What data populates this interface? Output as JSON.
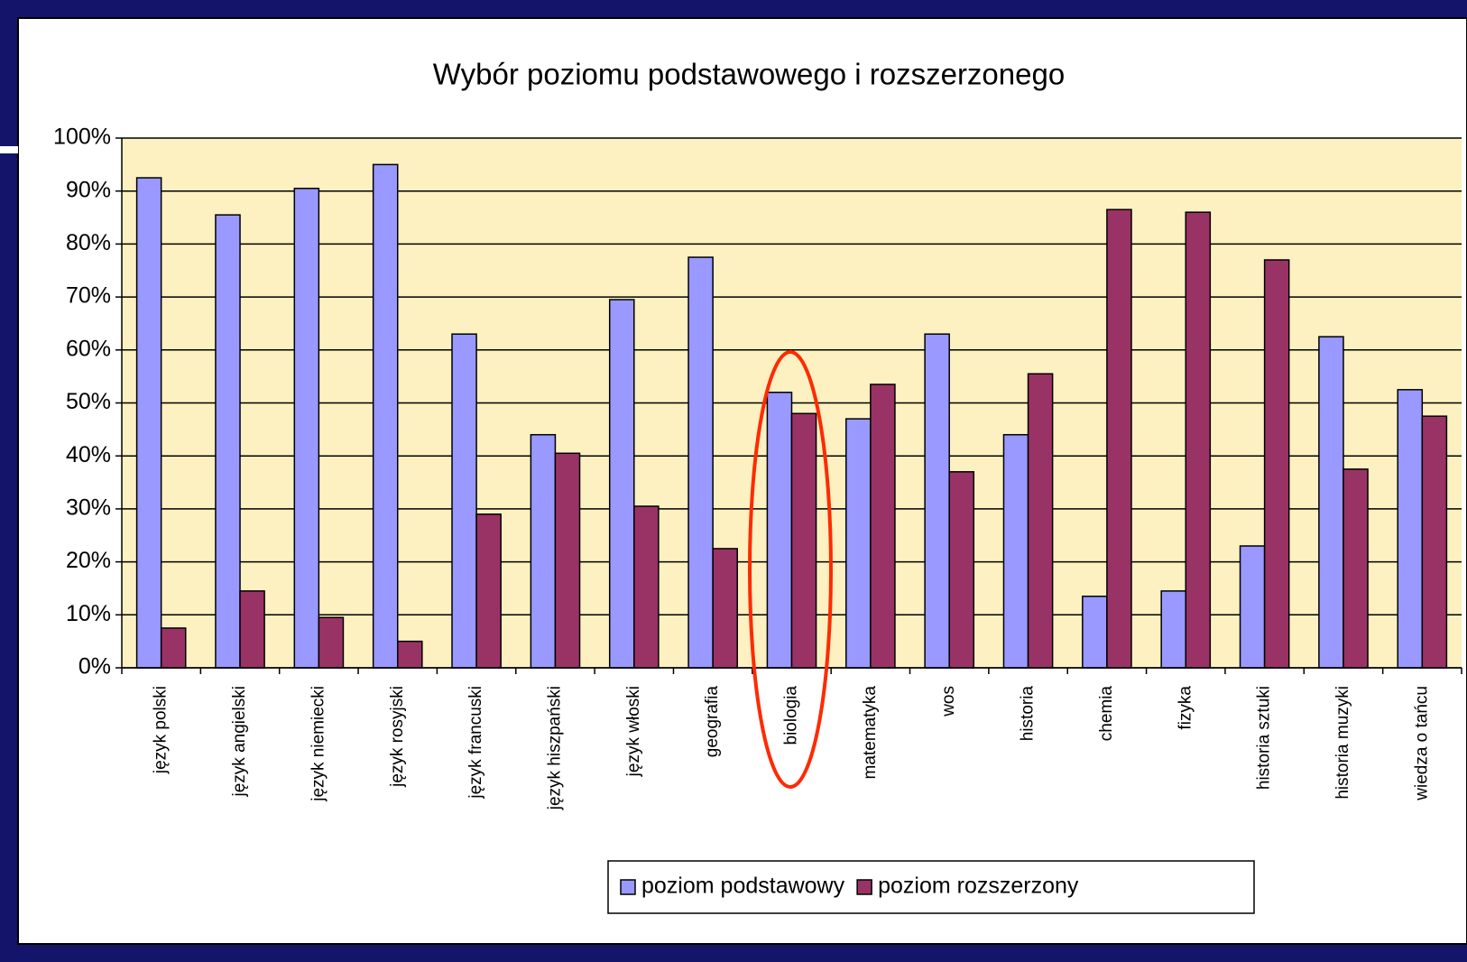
{
  "chart_data": {
    "type": "bar",
    "title": "Wybór poziomu podstawowego i rozszerzonego",
    "categories": [
      "język polski",
      "język angielski",
      "język niemiecki",
      "język rosyjski",
      "język francuski",
      "język hiszpański",
      "język włoski",
      "geografia",
      "biologia",
      "matematyka",
      "wos",
      "historia",
      "chemia",
      "fizyka",
      "historia sztuki",
      "historia muzyki",
      "wiedza o tańcu"
    ],
    "series": [
      {
        "name": "poziom podstawowy",
        "color": "#9999ff",
        "values": [
          92.5,
          85.5,
          90.5,
          95,
          63,
          44,
          69.5,
          77.5,
          52,
          47,
          63,
          44,
          13.5,
          14.5,
          23,
          62.5,
          52.5
        ]
      },
      {
        "name": "poziom rozszerzony",
        "color": "#993366",
        "values": [
          7.5,
          14.5,
          9.5,
          5,
          29,
          40.5,
          30.5,
          22.5,
          48,
          53.5,
          37,
          55.5,
          86.5,
          86,
          77,
          37.5,
          47.5
        ]
      }
    ],
    "ylim": [
      0,
      100
    ],
    "yticks": [
      {
        "value": 0,
        "label": "0%"
      },
      {
        "value": 10,
        "label": "10%"
      },
      {
        "value": 20,
        "label": "20%"
      },
      {
        "value": 30,
        "label": "30%"
      },
      {
        "value": 40,
        "label": "40%"
      },
      {
        "value": 50,
        "label": "50%"
      },
      {
        "value": 60,
        "label": "60%"
      },
      {
        "value": 70,
        "label": "70%"
      },
      {
        "value": 80,
        "label": "80%"
      },
      {
        "value": 90,
        "label": "90%"
      },
      {
        "value": 100,
        "label": "100%"
      }
    ],
    "grid": true,
    "legend": "bottom"
  }
}
